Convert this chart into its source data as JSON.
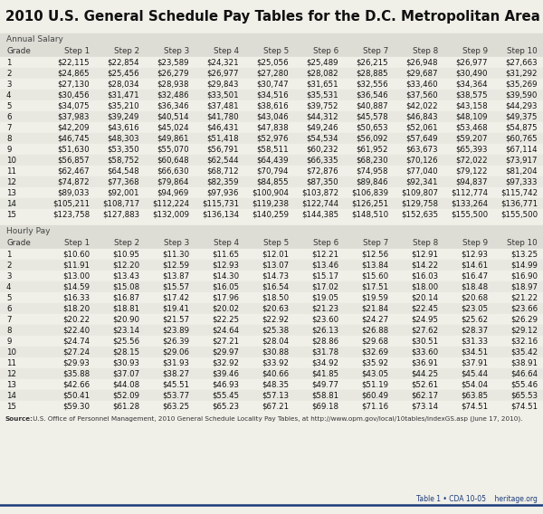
{
  "title": "2010 U.S. General Schedule Pay Tables for the D.C. Metropolitan Area",
  "annual_label": "Annual Salary",
  "hourly_label": "Hourly Pay",
  "col_headers": [
    "Grade",
    "Step 1",
    "Step 2",
    "Step 3",
    "Step 4",
    "Step 5",
    "Step 6",
    "Step 7",
    "Step 8",
    "Step 9",
    "Step 10"
  ],
  "annual_data": [
    [
      "1",
      "$22,115",
      "$22,854",
      "$23,589",
      "$24,321",
      "$25,056",
      "$25,489",
      "$26,215",
      "$26,948",
      "$26,977",
      "$27,663"
    ],
    [
      "2",
      "$24,865",
      "$25,456",
      "$26,279",
      "$26,977",
      "$27,280",
      "$28,082",
      "$28,885",
      "$29,687",
      "$30,490",
      "$31,292"
    ],
    [
      "3",
      "$27,130",
      "$28,034",
      "$28,938",
      "$29,843",
      "$30,747",
      "$31,651",
      "$32,556",
      "$33,460",
      "$34,364",
      "$35,269"
    ],
    [
      "4",
      "$30,456",
      "$31,471",
      "$32,486",
      "$33,501",
      "$34,516",
      "$35,531",
      "$36,546",
      "$37,560",
      "$38,575",
      "$39,590"
    ],
    [
      "5",
      "$34,075",
      "$35,210",
      "$36,346",
      "$37,481",
      "$38,616",
      "$39,752",
      "$40,887",
      "$42,022",
      "$43,158",
      "$44,293"
    ],
    [
      "6",
      "$37,983",
      "$39,249",
      "$40,514",
      "$41,780",
      "$43,046",
      "$44,312",
      "$45,578",
      "$46,843",
      "$48,109",
      "$49,375"
    ],
    [
      "7",
      "$42,209",
      "$43,616",
      "$45,024",
      "$46,431",
      "$47,838",
      "$49,246",
      "$50,653",
      "$52,061",
      "$53,468",
      "$54,875"
    ],
    [
      "8",
      "$46,745",
      "$48,303",
      "$49,861",
      "$51,418",
      "$52,976",
      "$54,534",
      "$56,092",
      "$57,649",
      "$59,207",
      "$60,765"
    ],
    [
      "9",
      "$51,630",
      "$53,350",
      "$55,070",
      "$56,791",
      "$58,511",
      "$60,232",
      "$61,952",
      "$63,673",
      "$65,393",
      "$67,114"
    ],
    [
      "10",
      "$56,857",
      "$58,752",
      "$60,648",
      "$62,544",
      "$64,439",
      "$66,335",
      "$68,230",
      "$70,126",
      "$72,022",
      "$73,917"
    ],
    [
      "11",
      "$62,467",
      "$64,548",
      "$66,630",
      "$68,712",
      "$70,794",
      "$72,876",
      "$74,958",
      "$77,040",
      "$79,122",
      "$81,204"
    ],
    [
      "12",
      "$74,872",
      "$77,368",
      "$79,864",
      "$82,359",
      "$84,855",
      "$87,350",
      "$89,846",
      "$92,341",
      "$94,837",
      "$97,333"
    ],
    [
      "13",
      "$89,033",
      "$92,001",
      "$94,969",
      "$97,936",
      "$100,904",
      "$103,872",
      "$106,839",
      "$109,807",
      "$112,774",
      "$115,742"
    ],
    [
      "14",
      "$105,211",
      "$108,717",
      "$112,224",
      "$115,731",
      "$119,238",
      "$122,744",
      "$126,251",
      "$129,758",
      "$133,264",
      "$136,771"
    ],
    [
      "15",
      "$123,758",
      "$127,883",
      "$132,009",
      "$136,134",
      "$140,259",
      "$144,385",
      "$148,510",
      "$152,635",
      "$155,500",
      "$155,500"
    ]
  ],
  "hourly_data": [
    [
      "1",
      "$10.60",
      "$10.95",
      "$11.30",
      "$11.65",
      "$12.01",
      "$12.21",
      "$12.56",
      "$12.91",
      "$12.93",
      "$13.25"
    ],
    [
      "2",
      "$11.91",
      "$12.20",
      "$12.59",
      "$12.93",
      "$13.07",
      "$13.46",
      "$13.84",
      "$14.22",
      "$14.61",
      "$14.99"
    ],
    [
      "3",
      "$13.00",
      "$13.43",
      "$13.87",
      "$14.30",
      "$14.73",
      "$15.17",
      "$15.60",
      "$16.03",
      "$16.47",
      "$16.90"
    ],
    [
      "4",
      "$14.59",
      "$15.08",
      "$15.57",
      "$16.05",
      "$16.54",
      "$17.02",
      "$17.51",
      "$18.00",
      "$18.48",
      "$18.97"
    ],
    [
      "5",
      "$16.33",
      "$16.87",
      "$17.42",
      "$17.96",
      "$18.50",
      "$19.05",
      "$19.59",
      "$20.14",
      "$20.68",
      "$21.22"
    ],
    [
      "6",
      "$18.20",
      "$18.81",
      "$19.41",
      "$20.02",
      "$20.63",
      "$21.23",
      "$21.84",
      "$22.45",
      "$23.05",
      "$23.66"
    ],
    [
      "7",
      "$20.22",
      "$20.90",
      "$21.57",
      "$22.25",
      "$22.92",
      "$23.60",
      "$24.27",
      "$24.95",
      "$25.62",
      "$26.29"
    ],
    [
      "8",
      "$22.40",
      "$23.14",
      "$23.89",
      "$24.64",
      "$25.38",
      "$26.13",
      "$26.88",
      "$27.62",
      "$28.37",
      "$29.12"
    ],
    [
      "9",
      "$24.74",
      "$25.56",
      "$26.39",
      "$27.21",
      "$28.04",
      "$28.86",
      "$29.68",
      "$30.51",
      "$31.33",
      "$32.16"
    ],
    [
      "10",
      "$27.24",
      "$28.15",
      "$29.06",
      "$29.97",
      "$30.88",
      "$31.78",
      "$32.69",
      "$33.60",
      "$34.51",
      "$35.42"
    ],
    [
      "11",
      "$29.93",
      "$30.93",
      "$31.93",
      "$32.92",
      "$33.92",
      "$34.92",
      "$35.92",
      "$36.91",
      "$37.91",
      "$38.91"
    ],
    [
      "12",
      "$35.88",
      "$37.07",
      "$38.27",
      "$39.46",
      "$40.66",
      "$41.85",
      "$43.05",
      "$44.25",
      "$45.44",
      "$46.64"
    ],
    [
      "13",
      "$42.66",
      "$44.08",
      "$45.51",
      "$46.93",
      "$48.35",
      "$49.77",
      "$51.19",
      "$52.61",
      "$54.04",
      "$55.46"
    ],
    [
      "14",
      "$50.41",
      "$52.09",
      "$53.77",
      "$55.45",
      "$57.13",
      "$58.81",
      "$60.49",
      "$62.17",
      "$63.85",
      "$65.53"
    ],
    [
      "15",
      "$59.30",
      "$61.28",
      "$63.25",
      "$65.23",
      "$67.21",
      "$69.18",
      "$71.16",
      "$73.14",
      "$74.51",
      "$74.51"
    ]
  ],
  "source_text_bold": "Source:",
  "source_text_normal": " U.S. Office of Personnel Management, 2010 General Schedule Locality Pay Tables, at http://www.opm.gov/local/10tables/indexGS.asp (June 17, 2010).",
  "footer_text": "Table 1 • CDA 10-05    heritage.org",
  "bg_color": "#f0efe8",
  "header_bg": "#ddddd5",
  "alt_row_bg": "#e8e8e0",
  "white_row_bg": "#f0efe8",
  "title_color": "#111111",
  "section_label_color": "#444444",
  "data_color": "#111111",
  "header_text_color": "#333333",
  "title_bg": "#f0efe8",
  "footer_line_color": "#1a3a7a",
  "footer_text_color": "#1a3a7a"
}
